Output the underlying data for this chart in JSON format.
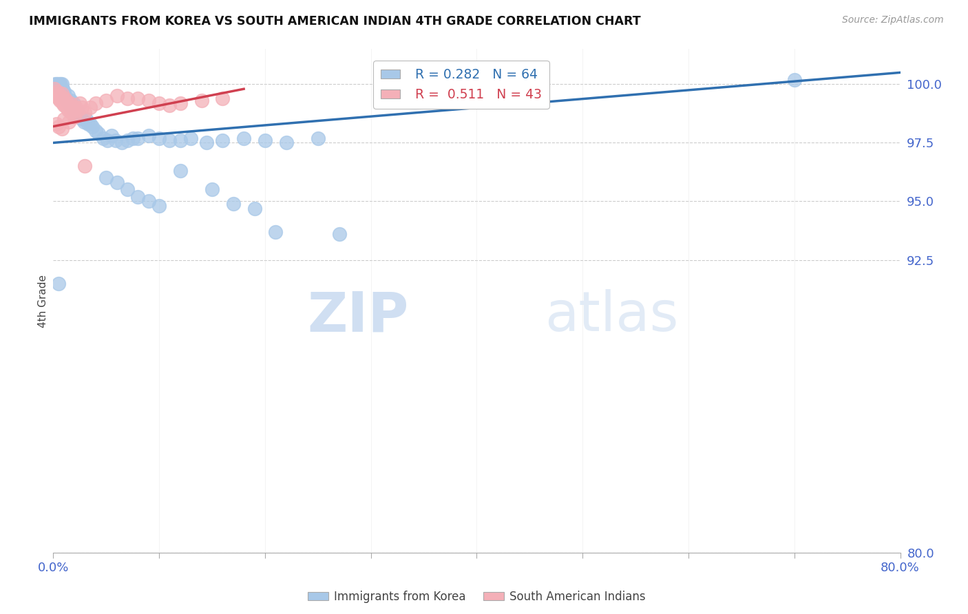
{
  "title": "IMMIGRANTS FROM KOREA VS SOUTH AMERICAN INDIAN 4TH GRADE CORRELATION CHART",
  "source": "Source: ZipAtlas.com",
  "ylabel": "4th Grade",
  "ytick_values": [
    100.0,
    97.5,
    95.0,
    92.5,
    80.0
  ],
  "xlim": [
    0.0,
    80.0
  ],
  "ylim": [
    80.0,
    101.5
  ],
  "legend_blue_r": "0.282",
  "legend_blue_n": "64",
  "legend_pink_r": "0.511",
  "legend_pink_n": "43",
  "blue_color": "#a8c8e8",
  "pink_color": "#f4b0b8",
  "blue_line_color": "#3070b0",
  "pink_line_color": "#d04050",
  "axis_label_color": "#4466cc",
  "watermark_zip": "ZIP",
  "watermark_atlas": "atlas",
  "blue_scatter_x": [
    0.2,
    0.3,
    0.4,
    0.5,
    0.6,
    0.7,
    0.8,
    0.9,
    1.0,
    1.1,
    1.2,
    1.3,
    1.4,
    1.5,
    1.6,
    1.7,
    1.8,
    1.9,
    2.0,
    2.1,
    2.2,
    2.3,
    2.5,
    2.7,
    2.9,
    3.1,
    3.3,
    3.5,
    3.7,
    4.0,
    4.3,
    4.7,
    5.1,
    5.5,
    5.9,
    6.5,
    7.0,
    7.5,
    8.0,
    9.0,
    10.0,
    11.0,
    12.0,
    13.0,
    14.5,
    16.0,
    18.0,
    20.0,
    22.0,
    25.0,
    5.0,
    6.0,
    7.0,
    8.0,
    9.0,
    10.0,
    12.0,
    15.0,
    17.0,
    19.0,
    21.0,
    27.0,
    70.0,
    0.5
  ],
  "blue_scatter_y": [
    100.0,
    100.0,
    100.0,
    100.0,
    100.0,
    100.0,
    100.0,
    99.8,
    99.7,
    99.5,
    99.4,
    99.3,
    99.5,
    99.2,
    99.1,
    99.3,
    99.0,
    99.2,
    98.9,
    98.8,
    98.7,
    98.8,
    98.6,
    98.5,
    98.4,
    98.5,
    98.3,
    98.3,
    98.2,
    98.0,
    97.9,
    97.7,
    97.6,
    97.8,
    97.6,
    97.5,
    97.6,
    97.7,
    97.7,
    97.8,
    97.7,
    97.6,
    97.6,
    97.7,
    97.5,
    97.6,
    97.7,
    97.6,
    97.5,
    97.7,
    96.0,
    95.8,
    95.5,
    95.2,
    95.0,
    94.8,
    96.3,
    95.5,
    94.9,
    94.7,
    93.7,
    93.6,
    100.2,
    91.5
  ],
  "pink_scatter_x": [
    0.1,
    0.2,
    0.3,
    0.4,
    0.5,
    0.6,
    0.7,
    0.8,
    0.9,
    1.0,
    1.1,
    1.2,
    1.3,
    1.4,
    1.5,
    1.6,
    1.7,
    1.8,
    1.9,
    2.0,
    2.1,
    2.3,
    2.5,
    2.7,
    3.0,
    3.5,
    4.0,
    5.0,
    6.0,
    7.0,
    8.0,
    9.0,
    10.0,
    11.0,
    12.0,
    14.0,
    16.0,
    0.3,
    0.5,
    0.8,
    1.0,
    1.5,
    3.0
  ],
  "pink_scatter_y": [
    99.8,
    99.6,
    99.5,
    99.7,
    99.4,
    99.3,
    99.5,
    99.6,
    99.2,
    99.1,
    99.4,
    99.3,
    99.0,
    98.9,
    99.1,
    99.2,
    98.8,
    99.0,
    98.7,
    98.6,
    99.0,
    98.9,
    99.2,
    99.0,
    98.8,
    99.0,
    99.2,
    99.3,
    99.5,
    99.4,
    99.4,
    99.3,
    99.2,
    99.1,
    99.2,
    99.3,
    99.4,
    98.3,
    98.2,
    98.1,
    98.5,
    98.4,
    96.5
  ],
  "blue_trend_x": [
    0.0,
    80.0
  ],
  "blue_trend_y": [
    97.5,
    100.5
  ],
  "pink_trend_x": [
    0.0,
    18.0
  ],
  "pink_trend_y": [
    98.2,
    99.8
  ]
}
